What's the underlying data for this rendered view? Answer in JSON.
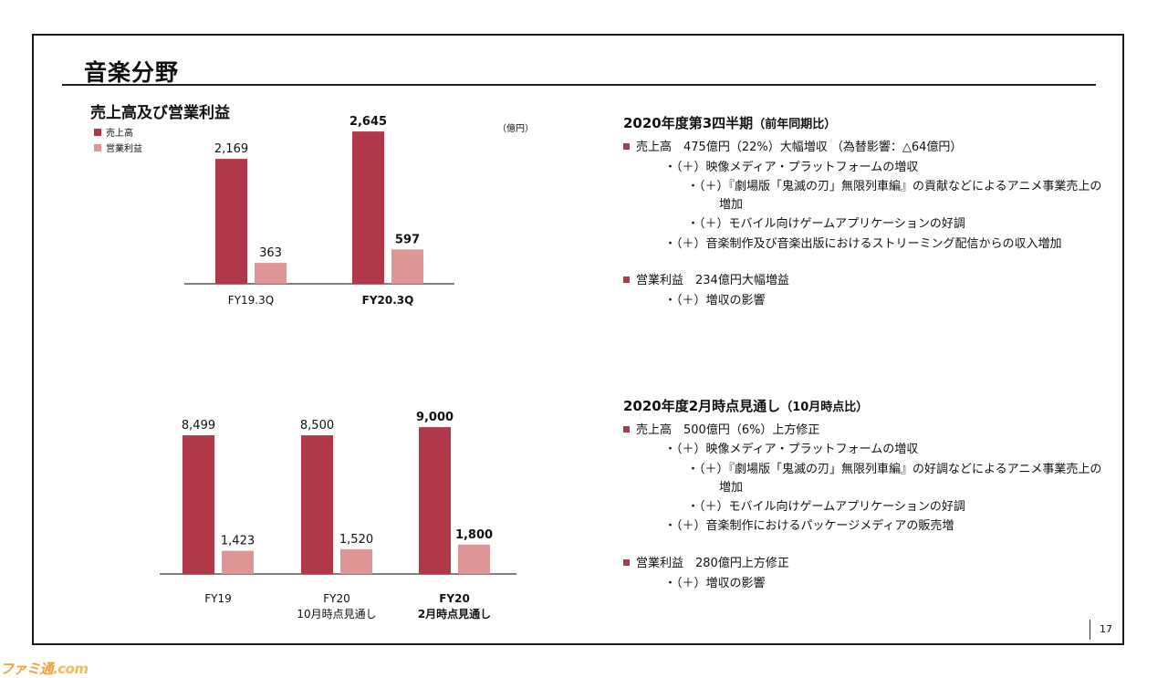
{
  "title": "音楽分野",
  "colors": {
    "sales": "#b03848",
    "profit": "#e09595",
    "axis": "#555555"
  },
  "chart_block": {
    "title": "売上高及び営業利益",
    "unit": "（億円）",
    "legend": [
      "売上高",
      "営業利益"
    ]
  },
  "chart_data": [
    {
      "type": "bar",
      "categories": [
        "FY19.3Q",
        "FY20.3Q"
      ],
      "bold_categories": [
        false,
        true
      ],
      "series": [
        {
          "name": "売上高",
          "values": [
            2169,
            2645
          ],
          "labels": [
            "2,169",
            "2,645"
          ]
        },
        {
          "name": "営業利益",
          "values": [
            363,
            597
          ],
          "labels": [
            "363",
            "597"
          ]
        }
      ],
      "ylim": [
        0,
        2900
      ],
      "legend": "top-left"
    },
    {
      "type": "bar",
      "categories": [
        [
          "FY19"
        ],
        [
          "FY20",
          "10月時点見通し"
        ],
        [
          "FY20",
          "2月時点見通し"
        ]
      ],
      "bold_categories": [
        false,
        false,
        true
      ],
      "series": [
        {
          "name": "売上高",
          "values": [
            8499,
            8500,
            9000
          ],
          "labels": [
            "8,499",
            "8,500",
            "9,000"
          ]
        },
        {
          "name": "営業利益",
          "values": [
            1423,
            1520,
            1800
          ],
          "labels": [
            "1,423",
            "1,520",
            "1,800"
          ]
        }
      ],
      "ylim": [
        0,
        9900
      ]
    }
  ],
  "section1": {
    "title": "2020年度第3四半期",
    "title_sub": "（前年同期比）",
    "sales_line": "売上高　475億円（22%）大幅増収 （為替影響：△64億円）",
    "sales_items": [
      "・（＋）映像メディア・プラットフォームの増収",
      "・（＋）『劇場版「鬼滅の刃」無限列車編』の貢献などによるアニメ事業売上の",
      "増加",
      "・（＋）モバイル向けゲームアプリケーションの好調",
      "・（＋）音楽制作及び音楽出版におけるストリーミング配信からの収入増加"
    ],
    "profit_line": "営業利益　234億円大幅増益",
    "profit_items": [
      "・（＋）増収の影響"
    ]
  },
  "section2": {
    "title": "2020年度2月時点見通し",
    "title_sub": "（10月時点比）",
    "sales_line": "売上高　500億円（6%）上方修正",
    "sales_items": [
      "・（＋）映像メディア・プラットフォームの増収",
      "・（＋）『劇場版「鬼滅の刃」無限列車編』の好調などによるアニメ事業売上の",
      "増加",
      "・（＋）モバイル向けゲームアプリケーションの好調",
      "・（＋）音楽制作におけるパッケージメディアの販売増"
    ],
    "profit_line": "営業利益　280億円上方修正",
    "profit_items": [
      "・（＋）増収の影響"
    ]
  },
  "page_number": "17",
  "logo": {
    "text": "ファミ通",
    "suffix": ".com"
  }
}
